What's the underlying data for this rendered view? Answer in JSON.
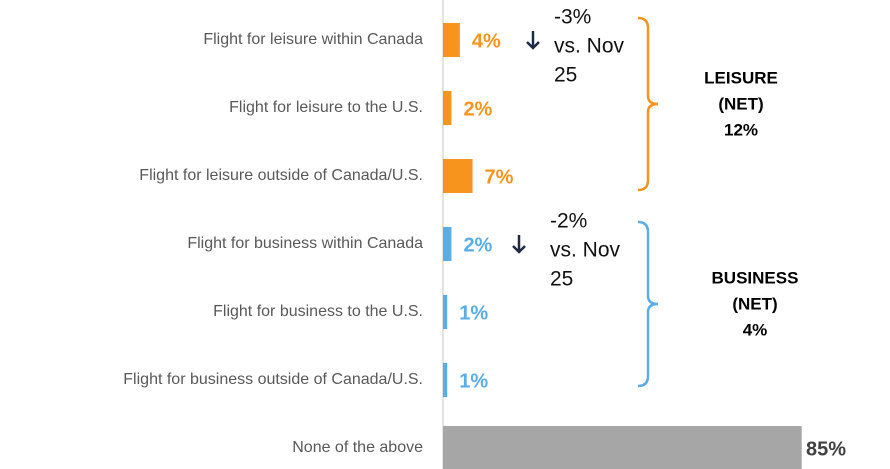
{
  "chart_data": {
    "type": "bar",
    "orientation": "horizontal",
    "categories": [
      "Flight for leisure within Canada",
      "Flight for leisure to the U.S.",
      "Flight for leisure outside of Canada/U.S.",
      "Flight for business within Canada",
      "Flight for business to the U.S.",
      "Flight for business outside of Canada/U.S.",
      "None of the above"
    ],
    "values": [
      4,
      2,
      7,
      2,
      1,
      1,
      85
    ],
    "value_labels": [
      "4%",
      "2%",
      "7%",
      "2%",
      "1%",
      "1%",
      "85%"
    ],
    "colors": [
      "#f7941d",
      "#f7941d",
      "#f7941d",
      "#5aade6",
      "#5aade6",
      "#5aade6",
      "#a6a6a6"
    ],
    "label_colors": [
      "#f7941d",
      "#f7941d",
      "#f7941d",
      "#5aade6",
      "#5aade6",
      "#5aade6",
      "#404040"
    ],
    "annotations": [
      [
        "-3%",
        "vs. Nov",
        "25"
      ],
      [
        "-2%",
        "vs. Nov",
        "25"
      ]
    ],
    "groups": [
      {
        "label": [
          "LEISURE",
          "(NET)",
          "12%"
        ],
        "color": "#f7941d"
      },
      {
        "label": [
          "BUSINESS",
          "(NET)",
          "4%"
        ],
        "color": "#5aade6"
      }
    ]
  }
}
